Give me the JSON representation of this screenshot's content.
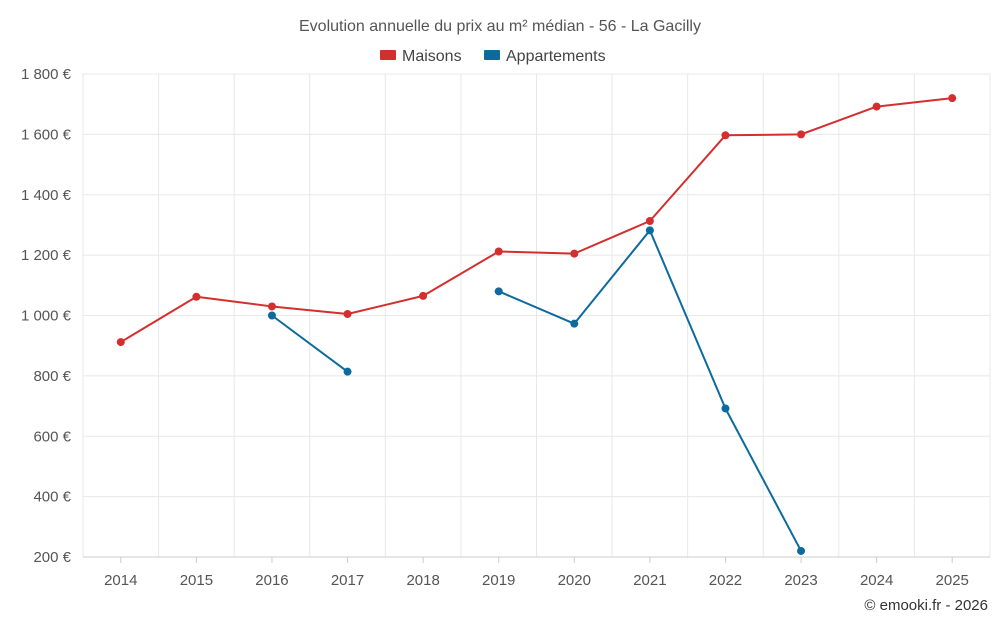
{
  "chart_data": {
    "type": "line",
    "title": "Evolution annuelle du prix au m² médian - 56 - La Gacilly",
    "categories": [
      "2014",
      "2015",
      "2016",
      "2017",
      "2018",
      "2019",
      "2020",
      "2021",
      "2022",
      "2023",
      "2024",
      "2025"
    ],
    "series": [
      {
        "name": "Maisons",
        "color": "#d32f2f",
        "values": [
          912,
          1062,
          1030,
          1005,
          1065,
          1212,
          1205,
          1313,
          1597,
          1600,
          1692,
          1720
        ]
      },
      {
        "name": "Appartements",
        "color": "#0d6a9e",
        "values": [
          null,
          null,
          1000,
          814,
          null,
          1080,
          973,
          1282,
          692,
          220,
          null,
          null
        ]
      }
    ],
    "ylim": [
      200,
      1800
    ],
    "yticks": [
      200,
      400,
      600,
      800,
      1000,
      1200,
      1400,
      1600,
      1800
    ],
    "ytick_labels": [
      "200 €",
      "400 €",
      "600 €",
      "800 €",
      "1 000 €",
      "1 200 €",
      "1 400 €",
      "1 600 €",
      "1 800 €"
    ],
    "xlabel": "",
    "ylabel": "",
    "legend_position": "top-center",
    "grid": true
  },
  "credit": "© emooki.fr - 2026"
}
